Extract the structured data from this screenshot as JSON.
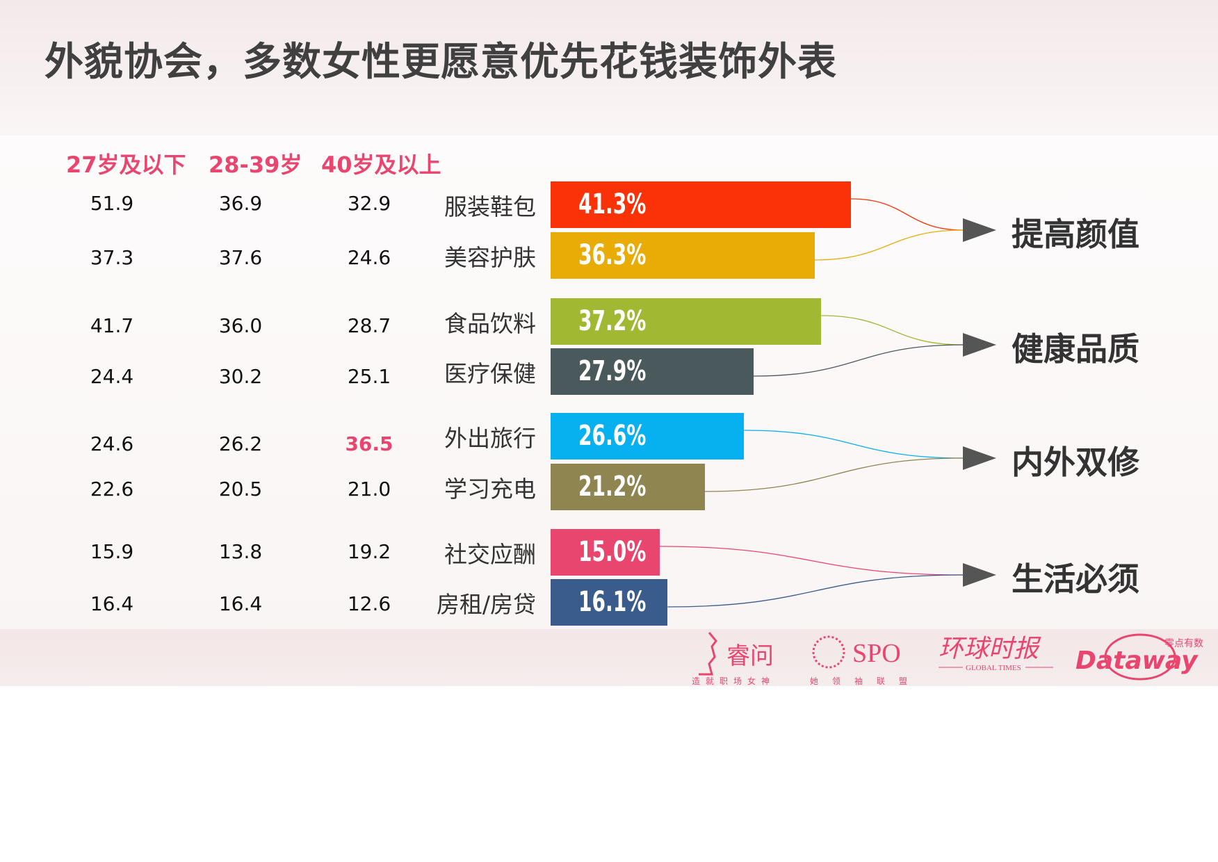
{
  "title": "外貌协会，多数女性更愿意优先花钱装饰外表",
  "chart_data": {
    "type": "bar",
    "orientation": "horizontal",
    "age_columns": [
      "27岁及以下",
      "28-39岁",
      "40岁及以上"
    ],
    "categories": [
      "服装鞋包",
      "美容护肤",
      "食品饮料",
      "医疗保健",
      "外出旅行",
      "学习充电",
      "社交应酬",
      "房租/房贷"
    ],
    "values": [
      41.3,
      36.3,
      37.2,
      27.9,
      26.6,
      21.2,
      15.0,
      16.1
    ],
    "value_labels": [
      "41.3%",
      "36.3%",
      "37.2%",
      "27.9%",
      "26.6%",
      "21.2%",
      "15.0%",
      "16.1%"
    ],
    "colors": [
      "#f93208",
      "#e9ac07",
      "#a0b832",
      "#4a5a5c",
      "#07b0ef",
      "#8e8550",
      "#e8456f",
      "#3a5c8c"
    ],
    "age_values": [
      [
        "51.9",
        "36.9",
        "32.9"
      ],
      [
        "37.3",
        "37.6",
        "24.6"
      ],
      [
        "41.7",
        "36.0",
        "28.7"
      ],
      [
        "24.4",
        "30.2",
        "25.1"
      ],
      [
        "24.6",
        "26.2",
        "36.5"
      ],
      [
        "22.6",
        "20.5",
        "21.0"
      ],
      [
        "15.9",
        "13.8",
        "19.2"
      ],
      [
        "16.4",
        "16.4",
        "12.6"
      ]
    ],
    "highlighted_cell": {
      "row": 4,
      "col": 2,
      "color": "#e8456f"
    },
    "groups": [
      {
        "label": "提高颜值",
        "members": [
          0,
          1
        ]
      },
      {
        "label": "健康品质",
        "members": [
          2,
          3
        ]
      },
      {
        "label": "内外双修",
        "members": [
          4,
          5
        ]
      },
      {
        "label": "生活必须",
        "members": [
          6,
          7
        ]
      }
    ]
  },
  "logos": {
    "ruiwen": {
      "name": "睿问",
      "tagline": "造就职场女神"
    },
    "spo": {
      "name": "SPO",
      "tagline": "她领袖联盟"
    },
    "global_times": {
      "name": "环球时报",
      "sub": "GLOBAL TIMES"
    },
    "dataway": {
      "name": "Dataway",
      "sub": "零点有数"
    }
  },
  "accent_color": "#e8456f"
}
